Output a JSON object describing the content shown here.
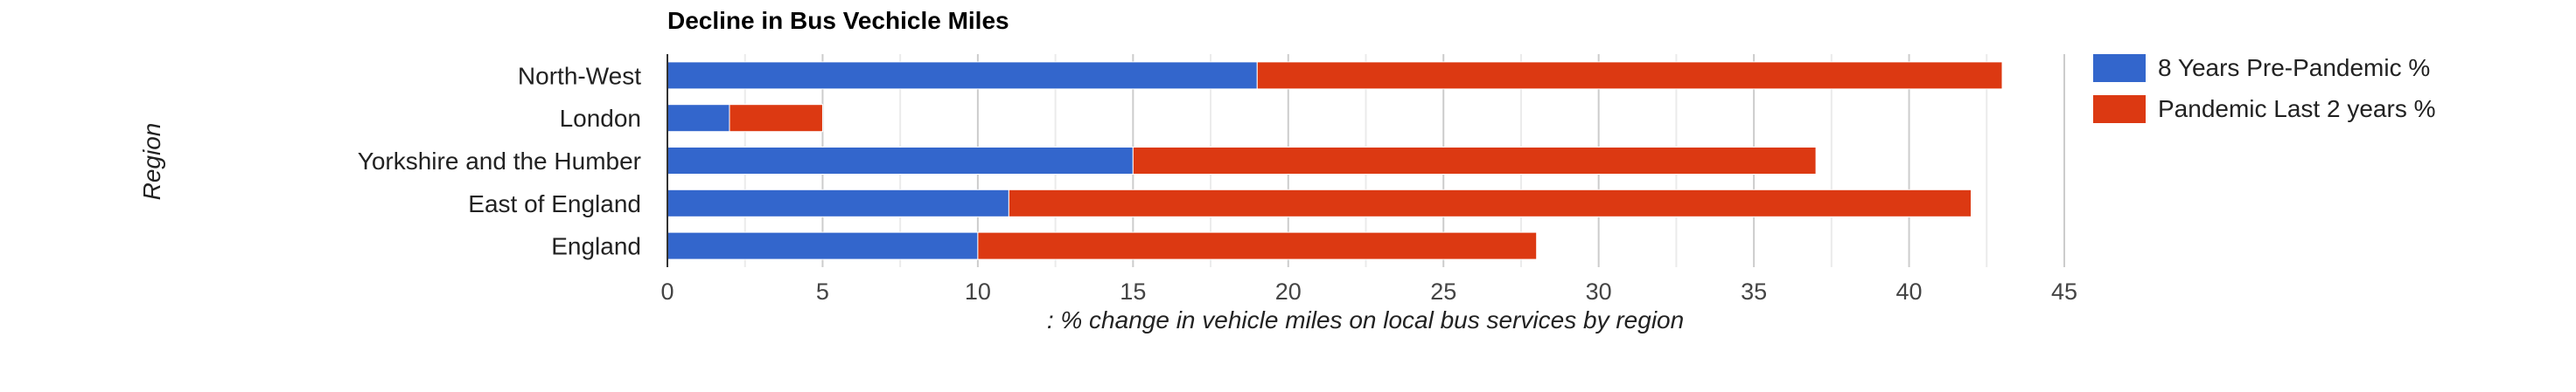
{
  "chart_data": {
    "type": "bar",
    "orientation": "horizontal",
    "stacked": true,
    "title": "Decline in Bus Vechicle Miles",
    "xlabel": ": % change in vehicle miles on local bus services by region",
    "ylabel": "Region",
    "categories": [
      "North-West",
      "London",
      "Yorkshire and the Humber",
      "East of England",
      "England"
    ],
    "series": [
      {
        "name": "8 Years Pre-Pandemic %",
        "color": "#3366cc",
        "values": [
          19,
          2,
          15,
          11,
          10
        ]
      },
      {
        "name": "Pandemic Last 2 years %",
        "color": "#dc3912",
        "values": [
          24,
          3,
          22,
          31,
          18
        ]
      }
    ],
    "xlim": [
      0,
      45
    ],
    "xticks": [
      "0",
      "5",
      "10",
      "15",
      "20",
      "25",
      "30",
      "35",
      "40",
      "45"
    ],
    "grid": true,
    "legend_position": "right"
  }
}
